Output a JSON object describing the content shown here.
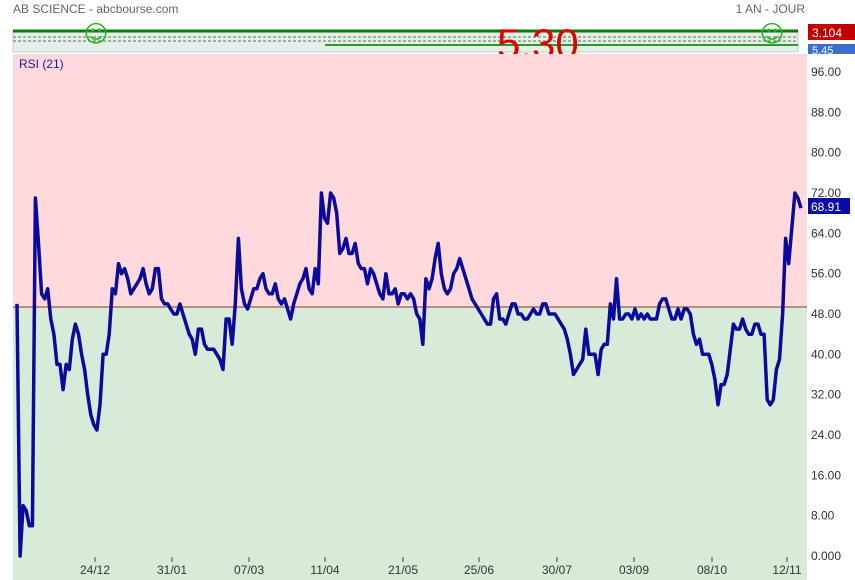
{
  "header": {
    "title": "AB SCIENCE - abcbourse.com",
    "period": "1 AN - JOUR"
  },
  "mini_chart": {
    "big_value": "5.30",
    "price_label": "3.104",
    "price_label2": "5.45",
    "smiley": "☺"
  },
  "colors": {
    "upper_zone": "#ffd9dc",
    "lower_zone": "#d8ebd9",
    "rsi_line": "#0a0a9c",
    "midline": "#8b3a1a",
    "mini_border": "#0a7a0a",
    "big_value": "#e00000",
    "price_badge": "#c00000",
    "rsi_badge": "#0a0aa8"
  },
  "chart_data": {
    "type": "line",
    "series": [
      {
        "name": "RSI (21)",
        "last_value": "68.91"
      }
    ],
    "ylim": [
      0,
      100
    ],
    "y_ticks": [
      "96.00",
      "88.00",
      "80.00",
      "72.00",
      "64.00",
      "56.00",
      "48.00",
      "40.00",
      "32.00",
      "24.00",
      "16.00",
      "8.00",
      "0.000"
    ],
    "x_ticks": [
      "24/12",
      "31/01",
      "07/03",
      "11/04",
      "21/05",
      "25/06",
      "30/07",
      "03/09",
      "08/10",
      "12/11"
    ],
    "midline": 50,
    "values": [
      50,
      0,
      10,
      9,
      6,
      6,
      71,
      62,
      52,
      51,
      53,
      47,
      44,
      38,
      38,
      33,
      38,
      37,
      43,
      46,
      44,
      40,
      37,
      32,
      28,
      26,
      25,
      30,
      40,
      40,
      44,
      53,
      52,
      58,
      56,
      57,
      55,
      52,
      53,
      54,
      55,
      57,
      54,
      52,
      53,
      57,
      57,
      51,
      50,
      50,
      49,
      48,
      48,
      50,
      48,
      46,
      44,
      43,
      40,
      45,
      45,
      42,
      41,
      41,
      41,
      40,
      39,
      37,
      47,
      47,
      42,
      50,
      63,
      53,
      50,
      49,
      51,
      53,
      53,
      55,
      56,
      53,
      52,
      52,
      54,
      51,
      50,
      51,
      49,
      47,
      50,
      52,
      54,
      55,
      57,
      53,
      52,
      57,
      54,
      72,
      67,
      66,
      72,
      71,
      68,
      60,
      61,
      63,
      60,
      60,
      62,
      58,
      57,
      57,
      54,
      57,
      56,
      54,
      52,
      51,
      56,
      52,
      52,
      53,
      50,
      52,
      52,
      51,
      52,
      51,
      48,
      47,
      42,
      55,
      53,
      55,
      59,
      62,
      56,
      53,
      52,
      53,
      56,
      57,
      59,
      57,
      55,
      53,
      51,
      50,
      49,
      48,
      47,
      46,
      46,
      51,
      52,
      47,
      47,
      46,
      48,
      50,
      50,
      48,
      48,
      47,
      47,
      48,
      49,
      48,
      48,
      50,
      50,
      48,
      48,
      48,
      47,
      46,
      45,
      43,
      40,
      36,
      37,
      38,
      39,
      45,
      40,
      40,
      40,
      36,
      41,
      42,
      42,
      50,
      47,
      55,
      47,
      47,
      48,
      48,
      47,
      49,
      47,
      48,
      47,
      48,
      47,
      47,
      47,
      50,
      51,
      51,
      49,
      47,
      47,
      49,
      47,
      49,
      49,
      48,
      44,
      42,
      43,
      40,
      40,
      40,
      38,
      35,
      30,
      34,
      34,
      36,
      41,
      46,
      45,
      45,
      47,
      45,
      44,
      44,
      46,
      46,
      44,
      44,
      31,
      30,
      31,
      37,
      39,
      48,
      63,
      58,
      65,
      72,
      71,
      69
    ]
  }
}
